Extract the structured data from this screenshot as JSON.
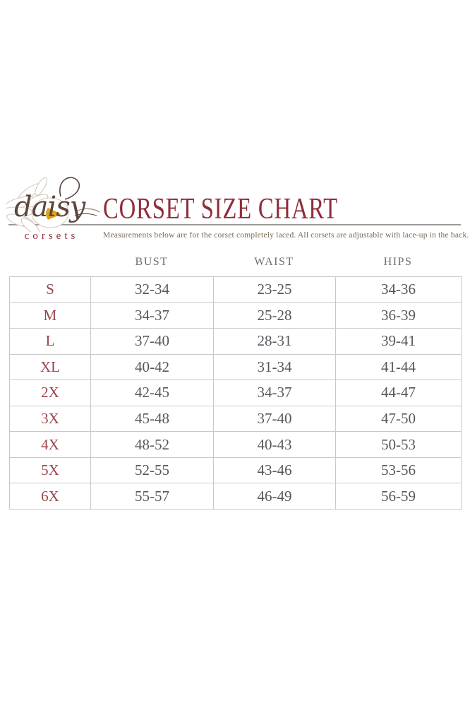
{
  "brand": {
    "script_name": "daisy",
    "sub_name": "corsets"
  },
  "header": {
    "title": "CORSET SIZE CHART",
    "subtitle": "Measurements below are for the corset completely laced. All corsets are adjustable with lace-up in the back."
  },
  "chart_data": {
    "type": "table",
    "title": "CORSET SIZE CHART",
    "columns": [
      "BUST",
      "WAIST",
      "HIPS"
    ],
    "rows": [
      {
        "size": "S",
        "bust": "32-34",
        "waist": "23-25",
        "hips": "34-36"
      },
      {
        "size": "M",
        "bust": "34-37",
        "waist": "25-28",
        "hips": "36-39"
      },
      {
        "size": "L",
        "bust": "37-40",
        "waist": "28-31",
        "hips": "39-41"
      },
      {
        "size": "XL",
        "bust": "40-42",
        "waist": "31-34",
        "hips": "41-44"
      },
      {
        "size": "2X",
        "bust": "42-45",
        "waist": "34-37",
        "hips": "44-47"
      },
      {
        "size": "3X",
        "bust": "45-48",
        "waist": "37-40",
        "hips": "47-50"
      },
      {
        "size": "4X",
        "bust": "48-52",
        "waist": "40-43",
        "hips": "50-53"
      },
      {
        "size": "5X",
        "bust": "52-55",
        "waist": "43-46",
        "hips": "53-56"
      },
      {
        "size": "6X",
        "bust": "55-57",
        "waist": "46-49",
        "hips": "56-59"
      }
    ]
  },
  "colors": {
    "accent_maroon": "#8e2e38",
    "size_label": "#9c444c",
    "value_text": "#55575c",
    "column_header_text": "#6b6d71",
    "subtitle_text": "#7b6a58",
    "table_border": "#c9c9ca",
    "rule_gray": "#9e9a96",
    "logo_ink": "#5c463c",
    "logo_gold": "#dca31e",
    "petal_stroke": "#cfc7ba"
  }
}
